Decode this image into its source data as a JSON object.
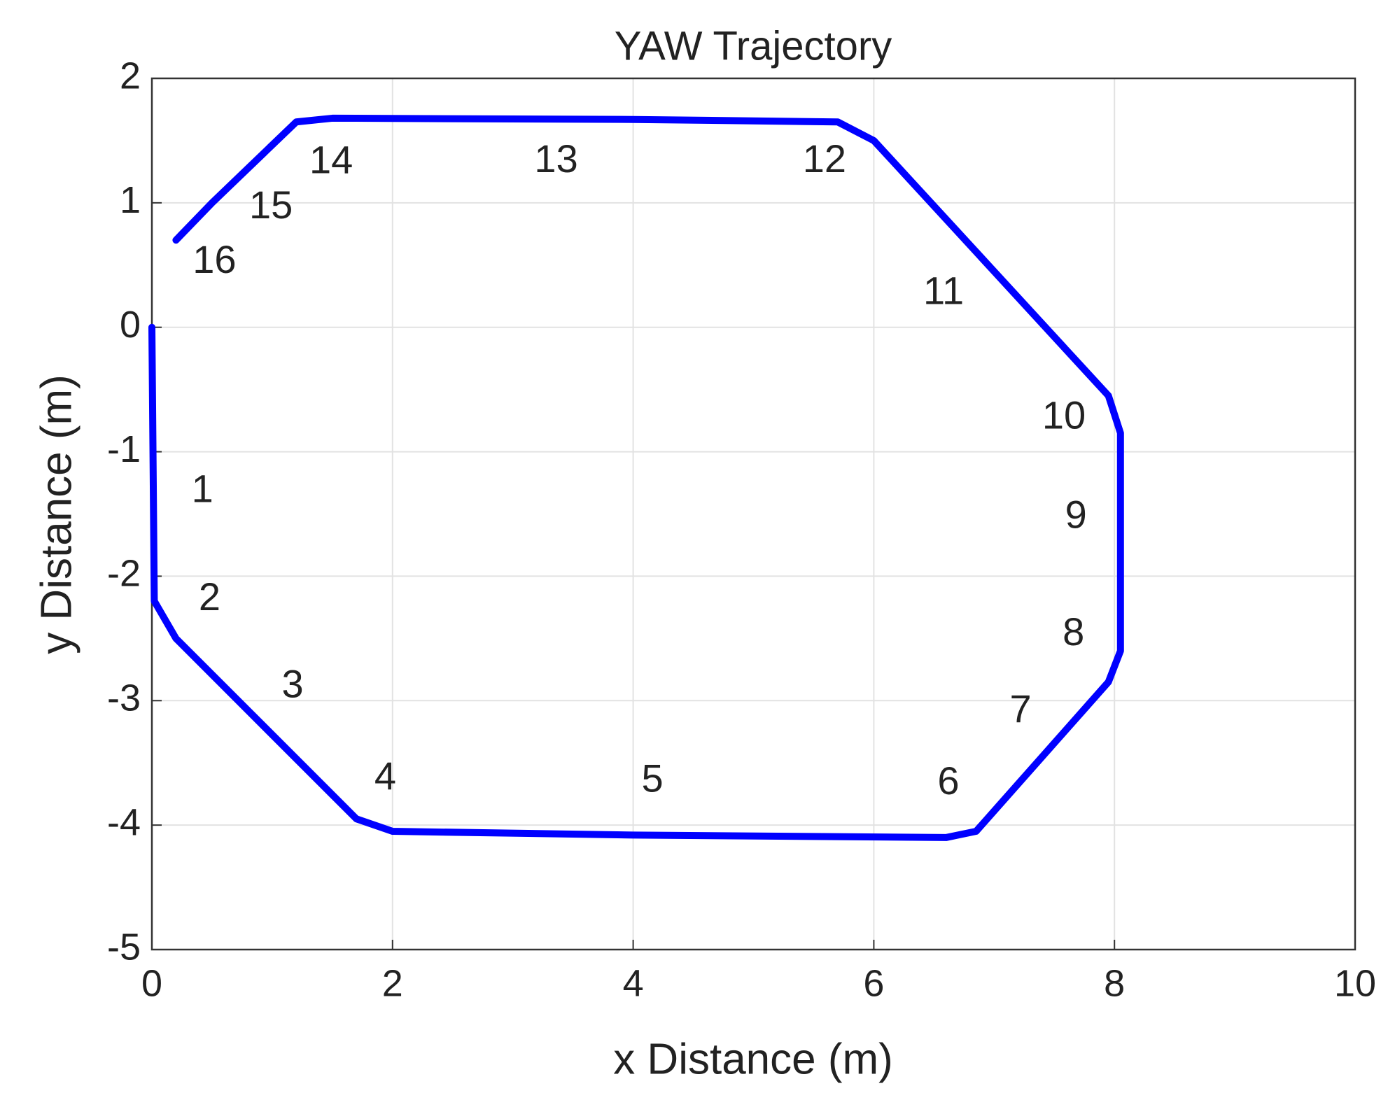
{
  "chart_data": {
    "type": "line",
    "title": "YAW Trajectory",
    "x_label": "x Distance (m)",
    "y_label": "y Distance (m)",
    "x": [
      0,
      0.02,
      0.2,
      1.7,
      2,
      4,
      6.6,
      6.85,
      7.95,
      8.05,
      8.05,
      7.95,
      6,
      5.7,
      4,
      1.5,
      1.2,
      0.5,
      0.2
    ],
    "values": [
      0,
      -2.2,
      -2.5,
      -3.95,
      -4.05,
      -4.08,
      -4.1,
      -4.05,
      -2.85,
      -2.6,
      -0.85,
      -0.55,
      1.5,
      1.65,
      1.67,
      1.68,
      1.65,
      1.0,
      0.7
    ],
    "color": "#0000ff",
    "xlim": [
      0,
      10
    ],
    "xticks": [
      0,
      2,
      4,
      6,
      8,
      10
    ],
    "ylim": [
      -5,
      2
    ],
    "yticks": [
      -5,
      -4,
      -3,
      -2,
      -1,
      0,
      1,
      2
    ],
    "grid": true,
    "annotations": [
      {
        "text": "1",
        "x": 0.42,
        "y": -1.32
      },
      {
        "text": "2",
        "x": 0.48,
        "y": -2.19
      },
      {
        "text": "3",
        "x": 1.17,
        "y": -2.89
      },
      {
        "text": "4",
        "x": 1.94,
        "y": -3.63
      },
      {
        "text": "5",
        "x": 4.16,
        "y": -3.65
      },
      {
        "text": "6",
        "x": 6.62,
        "y": -3.67
      },
      {
        "text": "7",
        "x": 7.22,
        "y": -3.09
      },
      {
        "text": "8",
        "x": 7.66,
        "y": -2.47
      },
      {
        "text": "9",
        "x": 7.68,
        "y": -1.53
      },
      {
        "text": "10",
        "x": 7.58,
        "y": -0.73
      },
      {
        "text": "11",
        "x": 6.58,
        "y": 0.27
      },
      {
        "text": "12",
        "x": 5.59,
        "y": 1.33
      },
      {
        "text": "13",
        "x": 3.36,
        "y": 1.33
      },
      {
        "text": "14",
        "x": 1.49,
        "y": 1.32
      },
      {
        "text": "15",
        "x": 0.99,
        "y": 0.96
      },
      {
        "text": "16",
        "x": 0.52,
        "y": 0.52
      }
    ]
  }
}
